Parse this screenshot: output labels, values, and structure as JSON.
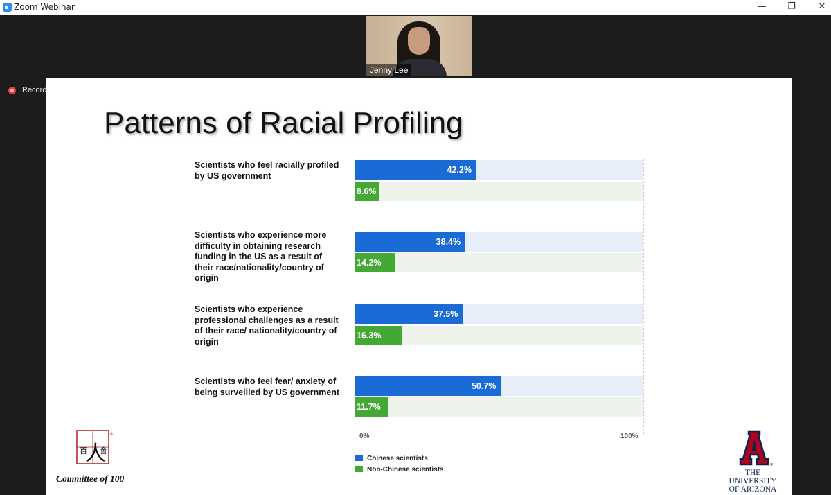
{
  "window": {
    "title": "Zoom Webinar",
    "minimize": "—",
    "restore": "❐",
    "close": "✕"
  },
  "video": {
    "participant_name": "Jenny Lee"
  },
  "recording": {
    "label": "Record"
  },
  "slide": {
    "title": "Patterns of Racial Profiling",
    "rows": [
      {
        "label": "Scientists who feel racially profiled by US government"
      },
      {
        "label": "Scientists who experience more difficulty in obtaining research funding in the US as a result of their race/nationality/country of origin"
      },
      {
        "label": "Scientists who experience professional challenges as a result of their race/ nationality/country of origin"
      },
      {
        "label": "Scientists who feel fear/ anxiety of being surveilled by US government"
      }
    ],
    "logos": {
      "committee_glyphs": "百人會",
      "committee_mark": "®",
      "committee_text": "Committee of 100",
      "ua_line1": "THE UNIVERSITY",
      "ua_line2": "OF ARIZONA"
    }
  },
  "chart_data": {
    "type": "bar",
    "orientation": "horizontal",
    "categories": [
      "Scientists who feel racially profiled by US government",
      "Scientists who experience more difficulty in obtaining research funding in the US as a result of their race/nationality/country of origin",
      "Scientists who experience professional challenges as a result of their race/ nationality/country of origin",
      "Scientists who feel fear/ anxiety of being surveilled by US government"
    ],
    "series": [
      {
        "name": "Chinese scientists",
        "color": "#1a6bd6",
        "values": [
          42.2,
          38.4,
          37.5,
          50.7
        ]
      },
      {
        "name": "Non-Chinese scientists",
        "color": "#43a934",
        "values": [
          8.6,
          14.2,
          16.3,
          11.7
        ]
      }
    ],
    "value_labels": [
      [
        "42.2%",
        "38.4%",
        "37.5%",
        "50.7%"
      ],
      [
        "8.6%",
        "14.2%",
        "16.3%",
        "11.7%"
      ]
    ],
    "xlim": [
      0,
      100
    ],
    "xticks": [
      "0%",
      "100%"
    ],
    "legend_position": "bottom"
  }
}
